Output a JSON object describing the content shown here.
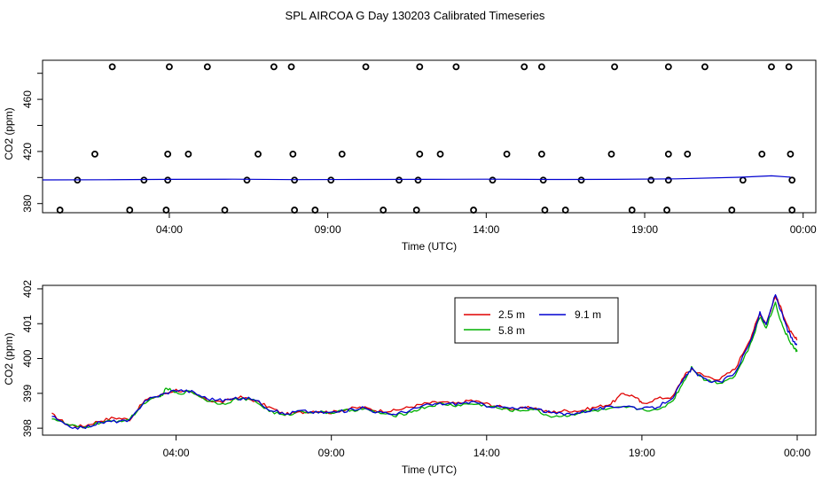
{
  "title": "SPL AIRCOA G  Day 130203  Calibrated Timeseries",
  "colors": {
    "s25": "#e00000",
    "s58": "#00b000",
    "s91": "#0000d0",
    "points": "#000000"
  },
  "chart_data": [
    {
      "type": "scatter",
      "xlabel": "Time (UTC)",
      "ylabel": "CO2 (ppm)",
      "xlim": [
        0.0,
        24.4
      ],
      "ylim": [
        373,
        490
      ],
      "xticks": [
        4,
        9,
        14,
        19,
        24
      ],
      "xtick_labels": [
        "04:00",
        "09:00",
        "14:00",
        "19:00",
        "00:00"
      ],
      "yticks": [
        380,
        400,
        420,
        440,
        460,
        480
      ],
      "ytick_labels": [
        "380",
        "",
        "420",
        "",
        "460",
        ""
      ],
      "points_y": [
        485,
        418,
        398,
        375
      ],
      "points_times": {
        "485": [
          2.2,
          4.0,
          5.2,
          7.3,
          7.85,
          10.2,
          11.9,
          13.05,
          15.2,
          15.75,
          18.05,
          19.75,
          20.9,
          23.0,
          23.55
        ],
        "418": [
          1.65,
          3.95,
          4.6,
          6.8,
          7.9,
          9.45,
          11.9,
          12.55,
          14.65,
          15.75,
          17.95,
          19.75,
          20.35,
          22.7,
          23.6
        ],
        "398": [
          1.1,
          3.2,
          3.95,
          6.45,
          7.95,
          9.1,
          11.25,
          11.85,
          14.2,
          15.8,
          17.0,
          19.2,
          19.75,
          22.1,
          23.65
        ],
        "375": [
          0.55,
          2.75,
          3.9,
          5.75,
          7.95,
          8.6,
          10.75,
          11.8,
          13.6,
          15.85,
          16.5,
          18.6,
          19.7,
          21.75,
          23.65
        ]
      },
      "series_line": [
        [
          0.0,
          398.2
        ],
        [
          2.0,
          398.3
        ],
        [
          4.0,
          398.6
        ],
        [
          6.0,
          398.7
        ],
        [
          8.0,
          398.4
        ],
        [
          10.0,
          398.5
        ],
        [
          12.0,
          398.6
        ],
        [
          14.0,
          398.7
        ],
        [
          16.0,
          398.5
        ],
        [
          18.0,
          398.6
        ],
        [
          20.0,
          399.0
        ],
        [
          22.0,
          400.2
        ],
        [
          23.0,
          401.3
        ],
        [
          23.6,
          400.3
        ]
      ]
    },
    {
      "type": "line",
      "xlabel": "Time (UTC)",
      "ylabel": "CO2 (ppm)",
      "xlim": [
        -0.3,
        24.6
      ],
      "ylim": [
        397.8,
        402.1
      ],
      "xticks": [
        4,
        9,
        14,
        19,
        24
      ],
      "xtick_labels": [
        "04:00",
        "09:00",
        "14:00",
        "19:00",
        "00:00"
      ],
      "yticks": [
        398,
        399,
        400,
        401,
        402
      ],
      "ytick_labels": [
        "398",
        "399",
        "400",
        "401",
        "402"
      ],
      "legend": {
        "position": "top-right",
        "entries": [
          "2.5 m",
          "5.8 m",
          "9.1 m"
        ]
      },
      "series": [
        {
          "name": "2.5 m",
          "points": [
            [
              0.0,
              398.4
            ],
            [
              0.5,
              398.1
            ],
            [
              1.0,
              398.05
            ],
            [
              1.5,
              398.2
            ],
            [
              2.0,
              398.3
            ],
            [
              2.5,
              398.25
            ],
            [
              3.0,
              398.8
            ],
            [
              3.5,
              398.95
            ],
            [
              4.0,
              399.1
            ],
            [
              4.5,
              399.0
            ],
            [
              5.0,
              398.8
            ],
            [
              5.5,
              398.75
            ],
            [
              6.0,
              398.9
            ],
            [
              6.5,
              398.8
            ],
            [
              7.0,
              398.6
            ],
            [
              7.5,
              398.4
            ],
            [
              8.0,
              398.45
            ],
            [
              8.5,
              398.5
            ],
            [
              9.0,
              398.45
            ],
            [
              9.5,
              398.55
            ],
            [
              10.0,
              398.6
            ],
            [
              10.5,
              398.5
            ],
            [
              11.0,
              398.5
            ],
            [
              11.5,
              398.6
            ],
            [
              12.0,
              398.7
            ],
            [
              12.5,
              398.75
            ],
            [
              13.0,
              398.7
            ],
            [
              13.5,
              398.8
            ],
            [
              14.0,
              398.7
            ],
            [
              14.5,
              398.6
            ],
            [
              15.0,
              398.55
            ],
            [
              15.5,
              398.6
            ],
            [
              16.0,
              398.45
            ],
            [
              16.5,
              398.5
            ],
            [
              17.0,
              398.5
            ],
            [
              17.5,
              398.6
            ],
            [
              18.0,
              398.7
            ],
            [
              18.4,
              399.0
            ],
            [
              18.8,
              398.9
            ],
            [
              19.0,
              398.7
            ],
            [
              19.5,
              398.85
            ],
            [
              20.0,
              398.9
            ],
            [
              20.35,
              399.5
            ],
            [
              20.6,
              399.7
            ],
            [
              21.0,
              399.5
            ],
            [
              21.5,
              399.4
            ],
            [
              22.0,
              399.7
            ],
            [
              22.5,
              400.6
            ],
            [
              22.8,
              401.3
            ],
            [
              23.0,
              401.0
            ],
            [
              23.3,
              401.8
            ],
            [
              23.5,
              401.4
            ],
            [
              23.7,
              400.9
            ],
            [
              23.9,
              400.6
            ],
            [
              24.0,
              400.55
            ]
          ]
        },
        {
          "name": "5.8 m",
          "points": [
            [
              0.0,
              398.3
            ],
            [
              0.5,
              398.1
            ],
            [
              1.0,
              398.0
            ],
            [
              1.5,
              398.15
            ],
            [
              2.0,
              398.2
            ],
            [
              2.5,
              398.25
            ],
            [
              3.0,
              398.75
            ],
            [
              3.5,
              398.9
            ],
            [
              3.7,
              399.15
            ],
            [
              4.0,
              399.0
            ],
            [
              4.5,
              399.05
            ],
            [
              5.0,
              398.8
            ],
            [
              5.5,
              398.7
            ],
            [
              6.0,
              398.85
            ],
            [
              6.5,
              398.8
            ],
            [
              7.0,
              398.5
            ],
            [
              7.5,
              398.35
            ],
            [
              8.0,
              398.5
            ],
            [
              8.5,
              398.45
            ],
            [
              9.0,
              398.45
            ],
            [
              9.5,
              398.5
            ],
            [
              10.0,
              398.55
            ],
            [
              10.5,
              398.45
            ],
            [
              11.0,
              398.35
            ],
            [
              11.5,
              398.45
            ],
            [
              12.0,
              398.6
            ],
            [
              12.5,
              398.7
            ],
            [
              13.0,
              398.65
            ],
            [
              13.5,
              398.7
            ],
            [
              14.0,
              398.65
            ],
            [
              14.5,
              398.55
            ],
            [
              15.0,
              398.5
            ],
            [
              15.5,
              398.55
            ],
            [
              16.0,
              398.35
            ],
            [
              16.5,
              398.35
            ],
            [
              17.0,
              398.45
            ],
            [
              17.5,
              398.5
            ],
            [
              18.0,
              398.55
            ],
            [
              18.5,
              398.6
            ],
            [
              19.0,
              398.55
            ],
            [
              19.5,
              398.5
            ],
            [
              20.0,
              398.8
            ],
            [
              20.35,
              399.35
            ],
            [
              20.6,
              399.75
            ],
            [
              21.0,
              399.4
            ],
            [
              21.5,
              399.3
            ],
            [
              22.0,
              399.5
            ],
            [
              22.5,
              400.4
            ],
            [
              22.8,
              401.2
            ],
            [
              23.0,
              400.9
            ],
            [
              23.3,
              401.6
            ],
            [
              23.5,
              401.0
            ],
            [
              23.7,
              400.6
            ],
            [
              23.9,
              400.3
            ],
            [
              24.0,
              400.2
            ]
          ]
        },
        {
          "name": "9.1 m",
          "points": [
            [
              0.0,
              398.35
            ],
            [
              0.5,
              398.05
            ],
            [
              1.0,
              398.0
            ],
            [
              1.5,
              398.15
            ],
            [
              2.0,
              398.2
            ],
            [
              2.5,
              398.2
            ],
            [
              3.0,
              398.8
            ],
            [
              3.5,
              398.95
            ],
            [
              4.0,
              399.1
            ],
            [
              4.5,
              399.05
            ],
            [
              5.0,
              398.85
            ],
            [
              5.5,
              398.8
            ],
            [
              6.0,
              398.85
            ],
            [
              6.5,
              398.85
            ],
            [
              7.0,
              398.55
            ],
            [
              7.5,
              398.4
            ],
            [
              8.0,
              398.5
            ],
            [
              8.5,
              398.45
            ],
            [
              9.0,
              398.45
            ],
            [
              9.5,
              398.5
            ],
            [
              10.0,
              398.6
            ],
            [
              10.5,
              398.45
            ],
            [
              11.0,
              398.4
            ],
            [
              11.5,
              398.5
            ],
            [
              12.0,
              398.65
            ],
            [
              12.5,
              398.7
            ],
            [
              13.0,
              398.7
            ],
            [
              13.5,
              398.75
            ],
            [
              14.0,
              398.65
            ],
            [
              14.5,
              398.6
            ],
            [
              15.0,
              398.55
            ],
            [
              15.5,
              398.6
            ],
            [
              16.0,
              398.45
            ],
            [
              16.5,
              398.4
            ],
            [
              17.0,
              398.45
            ],
            [
              17.5,
              398.55
            ],
            [
              18.0,
              398.6
            ],
            [
              18.5,
              398.65
            ],
            [
              19.0,
              398.55
            ],
            [
              19.5,
              398.6
            ],
            [
              20.0,
              398.9
            ],
            [
              20.35,
              399.4
            ],
            [
              20.6,
              399.7
            ],
            [
              21.0,
              399.4
            ],
            [
              21.5,
              399.3
            ],
            [
              22.0,
              399.6
            ],
            [
              22.5,
              400.5
            ],
            [
              22.8,
              401.3
            ],
            [
              23.0,
              400.95
            ],
            [
              23.3,
              401.85
            ],
            [
              23.5,
              401.3
            ],
            [
              23.7,
              400.8
            ],
            [
              23.9,
              400.45
            ],
            [
              24.0,
              400.4
            ]
          ]
        }
      ]
    }
  ]
}
